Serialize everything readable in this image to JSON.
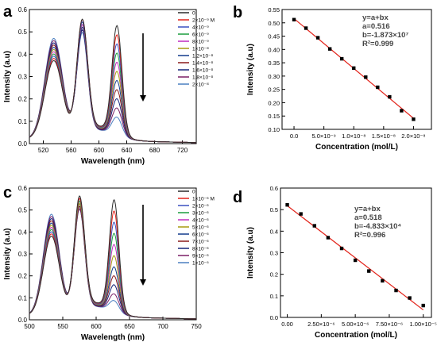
{
  "chart_data": [
    {
      "panel": "a",
      "type": "line",
      "xlabel": "Wavelength (nm)",
      "ylabel": "Intensity (a.u)",
      "xlim": [
        500,
        740
      ],
      "ylim": [
        0,
        0.6
      ],
      "xticks": [
        "520",
        "560",
        "600",
        "640",
        "680",
        "720"
      ],
      "yticks": [
        "0.0",
        "0.1",
        "0.2",
        "0.3",
        "0.4",
        "0.5",
        "0.6"
      ],
      "grid": false,
      "legend_position": "top-right",
      "legend": [
        "0",
        "2×10⁻⁹ M",
        "4×10⁻⁹",
        "6×10⁻⁹",
        "8×10⁻⁹",
        "1×10⁻⁸",
        "1.2×10⁻⁸",
        "1.4×10⁻⁸",
        "1.6×10⁻⁸",
        "1.8×10⁻⁸",
        "2×10⁻⁸"
      ],
      "series_shape": {
        "base_y": 0.02,
        "peaks": [
          {
            "x": 535,
            "w": 18,
            "h": [
              0.35,
              0.36,
              0.37,
              0.38,
              0.39,
              0.4,
              0.41,
              0.42,
              0.43,
              0.44,
              0.45
            ]
          },
          {
            "x": 576,
            "w": 11,
            "h": [
              0.5,
              0.5,
              0.49,
              0.49,
              0.48,
              0.48,
              0.47,
              0.47,
              0.46,
              0.46,
              0.45
            ]
          },
          {
            "x": 626,
            "w": 10,
            "h": [
              0.48,
              0.44,
              0.4,
              0.36,
              0.32,
              0.28,
              0.24,
              0.2,
              0.16,
              0.12,
              0.08
            ]
          }
        ]
      }
    },
    {
      "panel": "b",
      "type": "scatter",
      "xlabel": "Concentration (mol/L)",
      "ylabel": "Intensity (a.u)",
      "xlim": [
        -2e-09,
        2.3e-08
      ],
      "ylim": [
        0.1,
        0.55
      ],
      "xticks": [
        {
          "v": 0,
          "t": "0.0"
        },
        {
          "v": 5e-09,
          "t": "5.0×10⁻⁹"
        },
        {
          "v": 1e-08,
          "t": "1.0×10⁻⁸"
        },
        {
          "v": 1.5e-08,
          "t": "1.5×10⁻⁸"
        },
        {
          "v": 2e-08,
          "t": "2.0×10⁻⁸"
        }
      ],
      "yticks": [
        "0.10",
        "0.15",
        "0.20",
        "0.25",
        "0.30",
        "0.35",
        "0.40",
        "0.45",
        "0.50",
        "0.55"
      ],
      "x": [
        0,
        2e-09,
        4e-09,
        6e-09,
        8e-09,
        1e-08,
        1.2e-08,
        1.4e-08,
        1.6e-08,
        1.8e-08,
        2e-08
      ],
      "y": [
        0.512,
        0.48,
        0.444,
        0.402,
        0.365,
        0.33,
        0.296,
        0.258,
        0.222,
        0.17,
        0.138
      ],
      "fit": {
        "a": 0.516,
        "b": -18730000.0
      },
      "annotation": [
        "y=a+bx",
        "a=0.516",
        "b=-1.873×10⁷",
        "R²=0.999"
      ]
    },
    {
      "panel": "c",
      "type": "line",
      "xlabel": "Wavelength (nm)",
      "ylabel": "Intensity (a.u)",
      "xlim": [
        500,
        750
      ],
      "ylim": [
        0,
        0.6
      ],
      "xticks": [
        "500",
        "550",
        "600",
        "650",
        "700",
        "750"
      ],
      "yticks": [
        "0.0",
        "0.1",
        "0.2",
        "0.3",
        "0.4",
        "0.5",
        "0.6"
      ],
      "grid": false,
      "legend_position": "top-right",
      "legend": [
        "0",
        "1×10⁻⁶ M",
        "2×10⁻⁶",
        "3×10⁻⁶",
        "4×10⁻⁶",
        "5×10⁻⁶",
        "6×10⁻⁶",
        "7×10⁻⁶",
        "8×10⁻⁶",
        "9×10⁻⁶",
        "1×10⁻⁵"
      ],
      "series_shape": {
        "base_y": 0.02,
        "peaks": [
          {
            "x": 533,
            "w": 17,
            "h": [
              0.36,
              0.37,
              0.38,
              0.39,
              0.4,
              0.41,
              0.42,
              0.43,
              0.44,
              0.45,
              0.46
            ]
          },
          {
            "x": 575,
            "w": 11,
            "h": [
              0.51,
              0.5,
              0.5,
              0.49,
              0.49,
              0.48,
              0.48,
              0.47,
              0.47,
              0.46,
              0.46
            ]
          },
          {
            "x": 627,
            "w": 10,
            "h": [
              0.5,
              0.45,
              0.4,
              0.35,
              0.3,
              0.25,
              0.2,
              0.16,
              0.12,
              0.08,
              0.05
            ]
          }
        ]
      }
    },
    {
      "panel": "d",
      "type": "scatter",
      "xlabel": "Concentration (mol/L)",
      "ylabel": "Intensity (a.u)",
      "xlim": [
        -5e-07,
        1.06e-05
      ],
      "ylim": [
        0,
        0.6
      ],
      "xticks": [
        {
          "v": 0,
          "t": "0.00"
        },
        {
          "v": 2.5e-06,
          "t": "2.50×10⁻⁶"
        },
        {
          "v": 5e-06,
          "t": "5.00×10⁻⁶"
        },
        {
          "v": 7.5e-06,
          "t": "7.50×10⁻⁶"
        },
        {
          "v": 1e-05,
          "t": "1.00×10⁻⁵"
        }
      ],
      "yticks": [
        "0.0",
        "0.1",
        "0.2",
        "0.3",
        "0.4",
        "0.5",
        "0.6"
      ],
      "x": [
        0,
        1e-06,
        2e-06,
        3e-06,
        4e-06,
        5e-06,
        6e-06,
        7e-06,
        8e-06,
        9e-06,
        1e-05
      ],
      "y": [
        0.522,
        0.48,
        0.425,
        0.37,
        0.32,
        0.265,
        0.215,
        0.17,
        0.125,
        0.09,
        0.055
      ],
      "fit": {
        "a": 0.518,
        "b": -48330.0
      },
      "annotation": [
        "y=a+bx",
        "a=0.518",
        "b=-4.833×10⁴",
        "R²=0.996"
      ]
    }
  ],
  "colors": [
    "#2b2b2b",
    "#e2231a",
    "#3a4fc1",
    "#1b9e3e",
    "#c02cc0",
    "#a89b10",
    "#123b8c",
    "#8b1a1a",
    "#15257a",
    "#7a1f66",
    "#4a7fc0"
  ]
}
